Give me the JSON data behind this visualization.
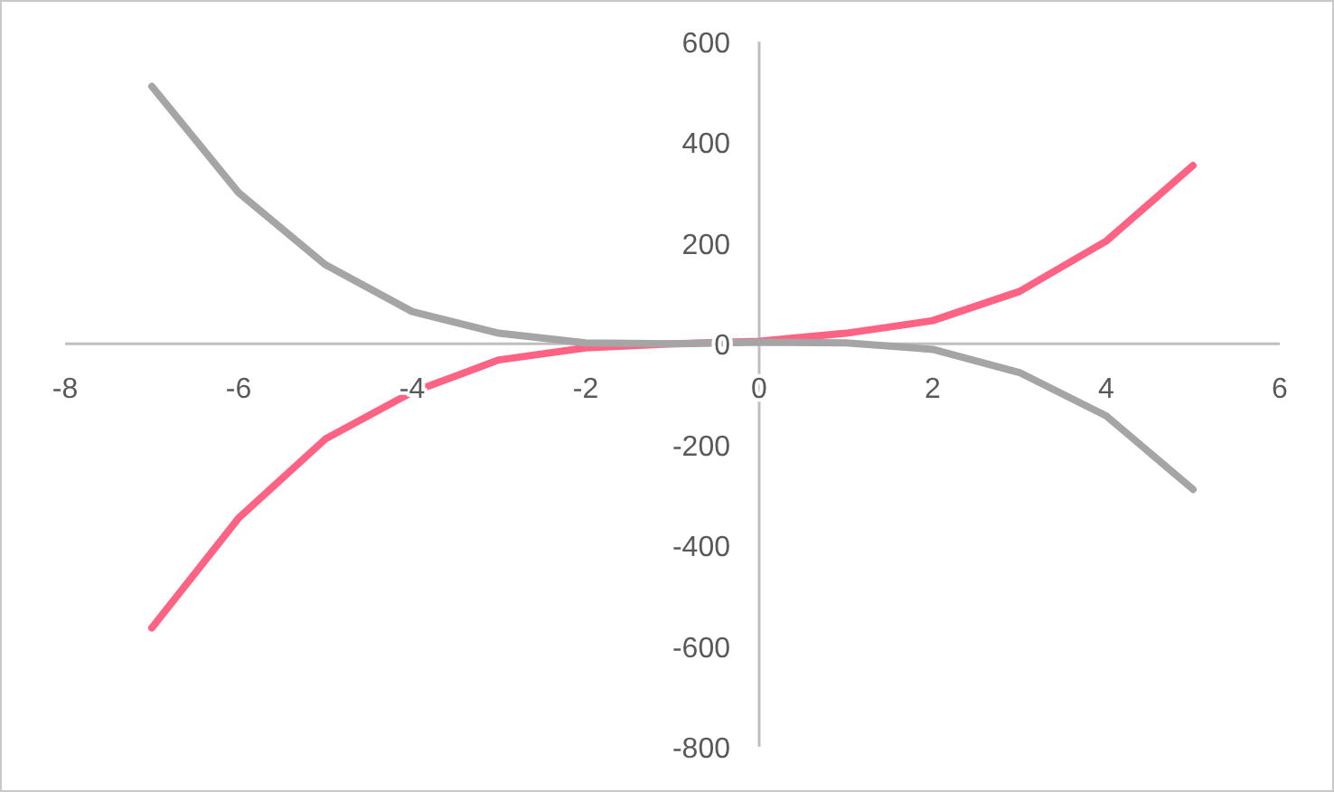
{
  "chart_data": {
    "type": "line",
    "x": [
      -7,
      -6,
      -5,
      -4,
      -3,
      -2,
      -1,
      0,
      1,
      2,
      3,
      4,
      5
    ],
    "series": [
      {
        "color": "#ff6384",
        "values": [
          -564,
          -346,
          -189,
          -96,
          -32,
          -8,
          0,
          5,
          21,
          46,
          104,
          204,
          354
        ]
      },
      {
        "color": "#a5a5a5",
        "values": [
          511,
          300,
          157,
          64,
          21,
          2,
          0,
          3,
          2,
          -11,
          -57,
          -143,
          -289
        ]
      }
    ],
    "xlim": [
      -8,
      6
    ],
    "xticks": [
      -8,
      -6,
      -4,
      -2,
      0,
      2,
      4,
      6
    ],
    "ylim": [
      -800,
      600
    ],
    "yticks": [
      -800,
      -600,
      -400,
      -200,
      0,
      200,
      400,
      600
    ],
    "grid": false,
    "marker": "none",
    "line_style": "solid"
  }
}
